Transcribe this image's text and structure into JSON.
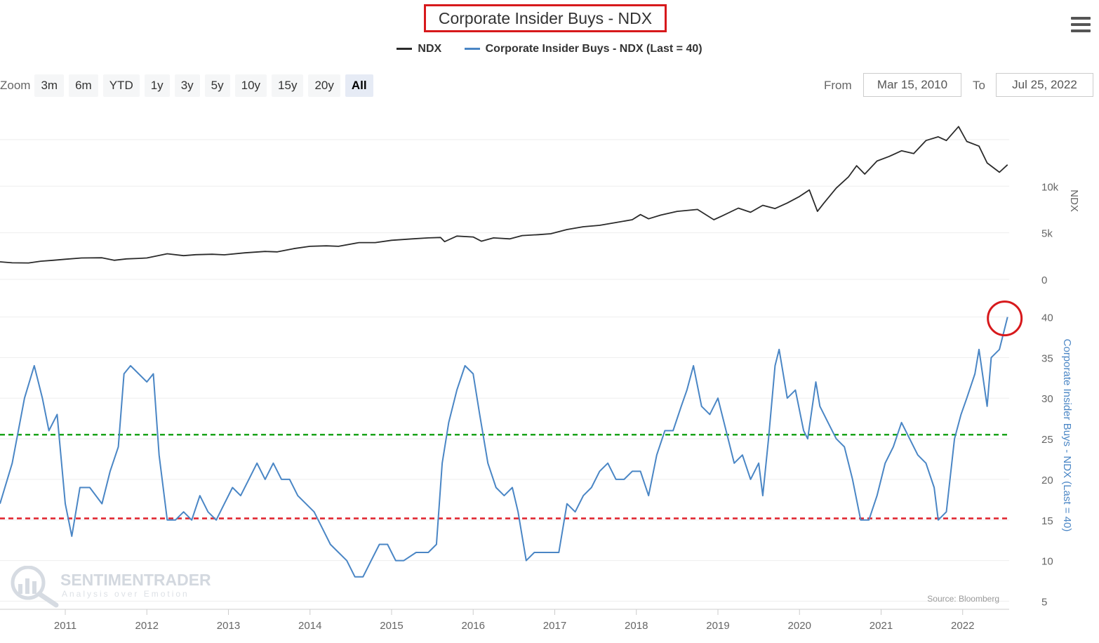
{
  "title": "Corporate Insider Buys - NDX",
  "legend": [
    {
      "name": "NDX",
      "color": "#2b2b2b"
    },
    {
      "name": "Corporate Insider Buys - NDX (Last = 40)",
      "color": "#4a86c5"
    }
  ],
  "menu_icon": "hamburger-menu-icon",
  "zoom": {
    "label": "Zoom",
    "buttons": [
      "3m",
      "6m",
      "YTD",
      "1y",
      "3y",
      "5y",
      "10y",
      "15y",
      "20y",
      "All"
    ],
    "active": "All"
  },
  "range": {
    "from_label": "From",
    "from_value": "Mar 15, 2010",
    "to_label": "To",
    "to_value": "Jul 25, 2022"
  },
  "watermark": {
    "brand": "SENTIMENTRADER",
    "tagline": "Analysis over Emotion"
  },
  "source": "Source: Bloomberg",
  "chart_data": [
    {
      "type": "line",
      "panel": "top",
      "series": [
        {
          "name": "NDX",
          "color": "#2b2b2b",
          "points": [
            [
              2010.2,
              1880
            ],
            [
              2010.35,
              1780
            ],
            [
              2010.55,
              1760
            ],
            [
              2010.7,
              1950
            ],
            [
              2010.85,
              2050
            ],
            [
              2011.0,
              2160
            ],
            [
              2011.2,
              2300
            ],
            [
              2011.45,
              2320
            ],
            [
              2011.6,
              2050
            ],
            [
              2011.75,
              2200
            ],
            [
              2011.9,
              2250
            ],
            [
              2012.0,
              2300
            ],
            [
              2012.25,
              2750
            ],
            [
              2012.45,
              2550
            ],
            [
              2012.6,
              2650
            ],
            [
              2012.8,
              2700
            ],
            [
              2012.95,
              2640
            ],
            [
              2013.2,
              2850
            ],
            [
              2013.45,
              3000
            ],
            [
              2013.6,
              2950
            ],
            [
              2013.8,
              3300
            ],
            [
              2014.0,
              3550
            ],
            [
              2014.2,
              3600
            ],
            [
              2014.35,
              3550
            ],
            [
              2014.6,
              3950
            ],
            [
              2014.8,
              3950
            ],
            [
              2015.0,
              4200
            ],
            [
              2015.25,
              4350
            ],
            [
              2015.45,
              4450
            ],
            [
              2015.6,
              4500
            ],
            [
              2015.65,
              4050
            ],
            [
              2015.8,
              4650
            ],
            [
              2016.0,
              4550
            ],
            [
              2016.1,
              4100
            ],
            [
              2016.25,
              4450
            ],
            [
              2016.45,
              4350
            ],
            [
              2016.6,
              4700
            ],
            [
              2016.8,
              4800
            ],
            [
              2016.95,
              4900
            ],
            [
              2017.15,
              5350
            ],
            [
              2017.35,
              5650
            ],
            [
              2017.55,
              5800
            ],
            [
              2017.75,
              6100
            ],
            [
              2017.95,
              6400
            ],
            [
              2018.05,
              6950
            ],
            [
              2018.15,
              6500
            ],
            [
              2018.3,
              6900
            ],
            [
              2018.5,
              7300
            ],
            [
              2018.75,
              7500
            ],
            [
              2018.95,
              6400
            ],
            [
              2019.05,
              6800
            ],
            [
              2019.25,
              7650
            ],
            [
              2019.4,
              7200
            ],
            [
              2019.55,
              7950
            ],
            [
              2019.7,
              7600
            ],
            [
              2019.85,
              8200
            ],
            [
              2020.0,
              8900
            ],
            [
              2020.12,
              9600
            ],
            [
              2020.22,
              7300
            ],
            [
              2020.3,
              8200
            ],
            [
              2020.45,
              9800
            ],
            [
              2020.6,
              11000
            ],
            [
              2020.7,
              12200
            ],
            [
              2020.8,
              11300
            ],
            [
              2020.95,
              12700
            ],
            [
              2021.1,
              13200
            ],
            [
              2021.25,
              13800
            ],
            [
              2021.4,
              13500
            ],
            [
              2021.55,
              14900
            ],
            [
              2021.7,
              15300
            ],
            [
              2021.8,
              14900
            ],
            [
              2021.95,
              16400
            ],
            [
              2022.05,
              14800
            ],
            [
              2022.2,
              14300
            ],
            [
              2022.3,
              12500
            ],
            [
              2022.45,
              11500
            ],
            [
              2022.55,
              12300
            ]
          ]
        }
      ],
      "y_axis": {
        "title": "NDX",
        "ticks": [
          {
            "v": 0,
            "label": "0"
          },
          {
            "v": 5000,
            "label": "5k"
          },
          {
            "v": 10000,
            "label": "10k"
          }
        ],
        "range": [
          0,
          16800
        ]
      }
    },
    {
      "type": "line",
      "panel": "bottom",
      "series": [
        {
          "name": "Corporate Insider Buys - NDX (Last = 40)",
          "color": "#4a86c5",
          "points": [
            [
              2010.2,
              17
            ],
            [
              2010.35,
              22
            ],
            [
              2010.5,
              30
            ],
            [
              2010.62,
              34
            ],
            [
              2010.72,
              30
            ],
            [
              2010.8,
              26
            ],
            [
              2010.9,
              28
            ],
            [
              2011.0,
              17
            ],
            [
              2011.08,
              13
            ],
            [
              2011.18,
              19
            ],
            [
              2011.3,
              19
            ],
            [
              2011.45,
              17
            ],
            [
              2011.55,
              21
            ],
            [
              2011.65,
              24
            ],
            [
              2011.72,
              33
            ],
            [
              2011.8,
              34
            ],
            [
              2011.9,
              33
            ],
            [
              2012.0,
              32
            ],
            [
              2012.08,
              33
            ],
            [
              2012.15,
              23
            ],
            [
              2012.25,
              15
            ],
            [
              2012.35,
              15
            ],
            [
              2012.45,
              16
            ],
            [
              2012.55,
              15
            ],
            [
              2012.65,
              18
            ],
            [
              2012.75,
              16
            ],
            [
              2012.85,
              15
            ],
            [
              2012.95,
              17
            ],
            [
              2013.05,
              19
            ],
            [
              2013.15,
              18
            ],
            [
              2013.25,
              20
            ],
            [
              2013.35,
              22
            ],
            [
              2013.45,
              20
            ],
            [
              2013.55,
              22
            ],
            [
              2013.65,
              20
            ],
            [
              2013.75,
              20
            ],
            [
              2013.85,
              18
            ],
            [
              2013.95,
              17
            ],
            [
              2014.05,
              16
            ],
            [
              2014.15,
              14
            ],
            [
              2014.25,
              12
            ],
            [
              2014.35,
              11
            ],
            [
              2014.45,
              10
            ],
            [
              2014.55,
              8
            ],
            [
              2014.65,
              8
            ],
            [
              2014.75,
              10
            ],
            [
              2014.85,
              12
            ],
            [
              2014.95,
              12
            ],
            [
              2015.05,
              10
            ],
            [
              2015.15,
              10
            ],
            [
              2015.3,
              11
            ],
            [
              2015.45,
              11
            ],
            [
              2015.55,
              12
            ],
            [
              2015.62,
              22
            ],
            [
              2015.7,
              27
            ],
            [
              2015.8,
              31
            ],
            [
              2015.9,
              34
            ],
            [
              2016.0,
              33
            ],
            [
              2016.08,
              28
            ],
            [
              2016.18,
              22
            ],
            [
              2016.28,
              19
            ],
            [
              2016.38,
              18
            ],
            [
              2016.48,
              19
            ],
            [
              2016.55,
              16
            ],
            [
              2016.65,
              10
            ],
            [
              2016.75,
              11
            ],
            [
              2016.85,
              11
            ],
            [
              2016.95,
              11
            ],
            [
              2017.05,
              11
            ],
            [
              2017.15,
              17
            ],
            [
              2017.25,
              16
            ],
            [
              2017.35,
              18
            ],
            [
              2017.45,
              19
            ],
            [
              2017.55,
              21
            ],
            [
              2017.65,
              22
            ],
            [
              2017.75,
              20
            ],
            [
              2017.85,
              20
            ],
            [
              2017.95,
              21
            ],
            [
              2018.05,
              21
            ],
            [
              2018.15,
              18
            ],
            [
              2018.25,
              23
            ],
            [
              2018.35,
              26
            ],
            [
              2018.45,
              26
            ],
            [
              2018.55,
              29
            ],
            [
              2018.62,
              31
            ],
            [
              2018.7,
              34
            ],
            [
              2018.8,
              29
            ],
            [
              2018.9,
              28
            ],
            [
              2019.0,
              30
            ],
            [
              2019.1,
              26
            ],
            [
              2019.2,
              22
            ],
            [
              2019.3,
              23
            ],
            [
              2019.4,
              20
            ],
            [
              2019.5,
              22
            ],
            [
              2019.55,
              18
            ],
            [
              2019.62,
              25
            ],
            [
              2019.7,
              34
            ],
            [
              2019.75,
              36
            ],
            [
              2019.85,
              30
            ],
            [
              2019.95,
              31
            ],
            [
              2020.05,
              26
            ],
            [
              2020.1,
              25
            ],
            [
              2020.2,
              32
            ],
            [
              2020.25,
              29
            ],
            [
              2020.35,
              27
            ],
            [
              2020.45,
              25
            ],
            [
              2020.55,
              24
            ],
            [
              2020.65,
              20
            ],
            [
              2020.75,
              15
            ],
            [
              2020.85,
              15
            ],
            [
              2020.95,
              18
            ],
            [
              2021.05,
              22
            ],
            [
              2021.15,
              24
            ],
            [
              2021.25,
              27
            ],
            [
              2021.35,
              25
            ],
            [
              2021.45,
              23
            ],
            [
              2021.55,
              22
            ],
            [
              2021.65,
              19
            ],
            [
              2021.7,
              15
            ],
            [
              2021.8,
              16
            ],
            [
              2021.9,
              25
            ],
            [
              2021.98,
              28
            ],
            [
              2022.05,
              30
            ],
            [
              2022.15,
              33
            ],
            [
              2022.2,
              36
            ],
            [
              2022.3,
              29
            ],
            [
              2022.35,
              35
            ],
            [
              2022.45,
              36
            ],
            [
              2022.55,
              40
            ]
          ]
        }
      ],
      "y_axis": {
        "title": "Corporate Insider Buys - NDX (Last = 40)",
        "ticks": [
          5,
          10,
          15,
          20,
          25,
          30,
          35,
          40
        ],
        "range": [
          4,
          41
        ]
      },
      "reference_lines": [
        {
          "value": 25.5,
          "color": "#1aa31a",
          "style": "dashed"
        },
        {
          "value": 15.2,
          "color": "#e0202a",
          "style": "dashed"
        }
      ],
      "annotation": {
        "type": "circle",
        "at": [
          2022.55,
          40
        ],
        "color": "#d7191c"
      }
    }
  ],
  "x_axis": {
    "ticks": [
      "2011",
      "2012",
      "2013",
      "2014",
      "2015",
      "2016",
      "2017",
      "2018",
      "2019",
      "2020",
      "2021",
      "2022"
    ],
    "tick_values": [
      2011,
      2012,
      2013,
      2014,
      2015,
      2016,
      2017,
      2018,
      2019,
      2020,
      2021,
      2022
    ],
    "range": [
      2010.2,
      2022.57
    ]
  },
  "grid": true
}
